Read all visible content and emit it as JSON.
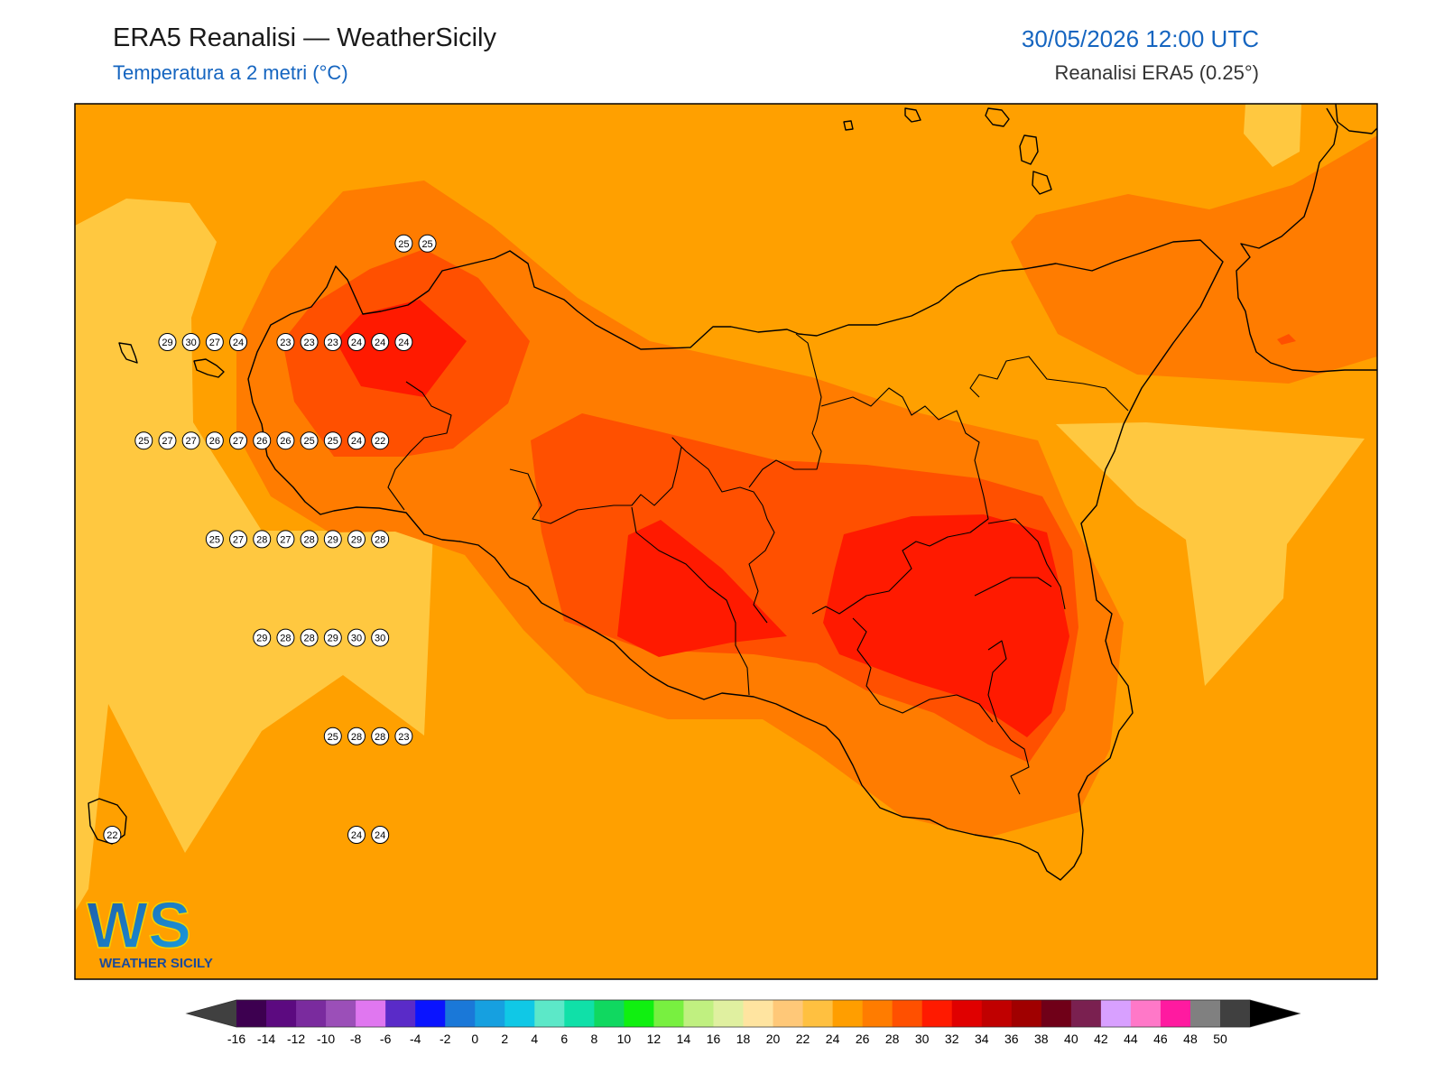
{
  "header": {
    "title": "ERA5 Reanalisi — WeatherSicily",
    "subtitle": "Temperatura a 2 metri (°C)",
    "datetime": "30/05/2026 12:00 UTC",
    "source": "Reanalisi ERA5 (0.25°)"
  },
  "logo": {
    "letters": "WS",
    "name": "WEATHER SICILY"
  },
  "colorbar": {
    "ticks": [
      "-16",
      "-14",
      "-12",
      "-10",
      "-8",
      "-6",
      "-4",
      "-2",
      "0",
      "2",
      "4",
      "6",
      "8",
      "10",
      "12",
      "14",
      "16",
      "18",
      "20",
      "22",
      "24",
      "26",
      "28",
      "30",
      "32",
      "34",
      "36",
      "38",
      "40",
      "42",
      "44",
      "46",
      "48",
      "50"
    ],
    "colors": [
      "#3d0050",
      "#5c0a80",
      "#7a2b9e",
      "#9b4fb8",
      "#e077f0",
      "#5a2bc8",
      "#0a14ff",
      "#1a78d8",
      "#16a0e0",
      "#10c8e6",
      "#5ce8c8",
      "#10e0a8",
      "#10d860",
      "#10f010",
      "#78f040",
      "#c0f080",
      "#e0f0a0",
      "#ffe4a0",
      "#ffc878",
      "#ffc040",
      "#ff9e00",
      "#ff7c00",
      "#ff5000",
      "#ff1a00",
      "#e00000",
      "#c00000",
      "#a00000",
      "#700018",
      "#7a2050",
      "#d8a0ff",
      "#ff78c8",
      "#ff1aa0",
      "#808080",
      "#404040"
    ],
    "under_color": "#404040",
    "over_color": "#000000"
  },
  "stations": [
    {
      "v": "29",
      "lon": 12.65,
      "lat": 38.2
    },
    {
      "v": "30",
      "lon": 12.95,
      "lat": 38.2
    },
    {
      "v": "27",
      "lon": 13.25,
      "lat": 38.2
    },
    {
      "v": "24",
      "lon": 13.55,
      "lat": 38.2
    },
    {
      "v": "23",
      "lon": 14.15,
      "lat": 38.2
    },
    {
      "v": "23",
      "lon": 14.45,
      "lat": 38.2
    },
    {
      "v": "23",
      "lon": 14.75,
      "lat": 38.2
    },
    {
      "v": "24",
      "lon": 15.05,
      "lat": 38.2
    },
    {
      "v": "24",
      "lon": 15.35,
      "lat": 38.2
    },
    {
      "v": "24",
      "lon": 15.65,
      "lat": 38.2
    },
    {
      "v": "25",
      "lon": 15.65,
      "lat": 38.5
    },
    {
      "v": "25",
      "lon": 15.95,
      "lat": 38.5
    },
    {
      "v": "25",
      "lon": 12.35,
      "lat": 37.9
    },
    {
      "v": "27",
      "lon": 12.65,
      "lat": 37.9
    },
    {
      "v": "27",
      "lon": 12.95,
      "lat": 37.9
    },
    {
      "v": "26",
      "lon": 13.25,
      "lat": 37.9
    },
    {
      "v": "27",
      "lon": 13.55,
      "lat": 37.9
    },
    {
      "v": "26",
      "lon": 13.85,
      "lat": 37.9
    },
    {
      "v": "26",
      "lon": 14.15,
      "lat": 37.9
    },
    {
      "v": "25",
      "lon": 14.45,
      "lat": 37.9
    },
    {
      "v": "25",
      "lon": 14.75,
      "lat": 37.9
    },
    {
      "v": "24",
      "lon": 15.05,
      "lat": 37.9
    },
    {
      "v": "22",
      "lon": 15.35,
      "lat": 37.9
    },
    {
      "v": "25",
      "lon": 13.25,
      "lat": 37.6
    },
    {
      "v": "27",
      "lon": 13.55,
      "lat": 37.6
    },
    {
      "v": "28",
      "lon": 13.85,
      "lat": 37.6
    },
    {
      "v": "27",
      "lon": 14.15,
      "lat": 37.6
    },
    {
      "v": "28",
      "lon": 14.45,
      "lat": 37.6
    },
    {
      "v": "29",
      "lon": 14.75,
      "lat": 37.6
    },
    {
      "v": "29",
      "lon": 15.05,
      "lat": 37.6
    },
    {
      "v": "28",
      "lon": 15.35,
      "lat": 37.6
    },
    {
      "v": "29",
      "lon": 13.85,
      "lat": 37.3
    },
    {
      "v": "28",
      "lon": 14.15,
      "lat": 37.3
    },
    {
      "v": "28",
      "lon": 14.45,
      "lat": 37.3
    },
    {
      "v": "29",
      "lon": 14.75,
      "lat": 37.3
    },
    {
      "v": "30",
      "lon": 15.05,
      "lat": 37.3
    },
    {
      "v": "30",
      "lon": 15.35,
      "lat": 37.3
    },
    {
      "v": "25",
      "lon": 14.75,
      "lat": 37.0
    },
    {
      "v": "28",
      "lon": 15.05,
      "lat": 37.0
    },
    {
      "v": "28",
      "lon": 15.35,
      "lat": 37.0
    },
    {
      "v": "23",
      "lon": 15.65,
      "lat": 37.0
    },
    {
      "v": "24",
      "lon": 15.05,
      "lat": 36.7
    },
    {
      "v": "24",
      "lon": 15.35,
      "lat": 36.7
    },
    {
      "v": "22",
      "lon": 11.95,
      "lat": 36.7
    }
  ]
}
